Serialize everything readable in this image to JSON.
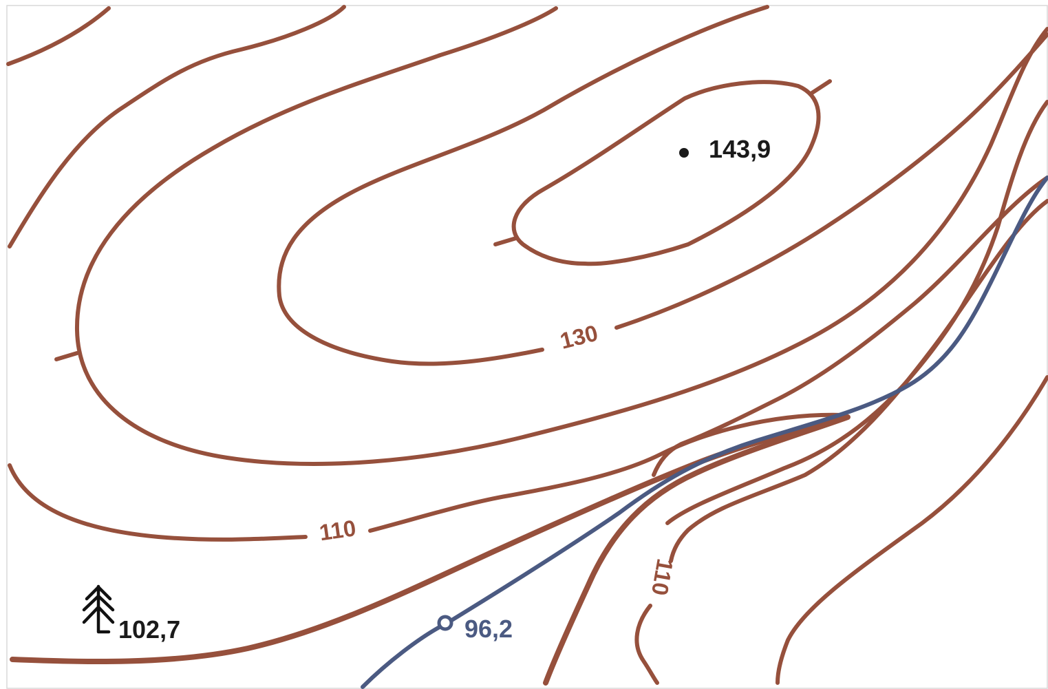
{
  "map": {
    "colors": {
      "contour": "#96503c",
      "river": "#4b5a82",
      "text": "#1a1a1a",
      "frame": "#d8d8d8"
    },
    "contour_labels": {
      "label_130": "130",
      "label_110_left": "110",
      "label_110_right": "110"
    },
    "points": {
      "summit": {
        "elevation": "143,9",
        "symbol": "dot"
      },
      "forest": {
        "elevation": "102,7",
        "symbol": "conifer-tree-icon"
      },
      "river_point": {
        "elevation": "96,2",
        "symbol": "open-circle"
      }
    }
  }
}
